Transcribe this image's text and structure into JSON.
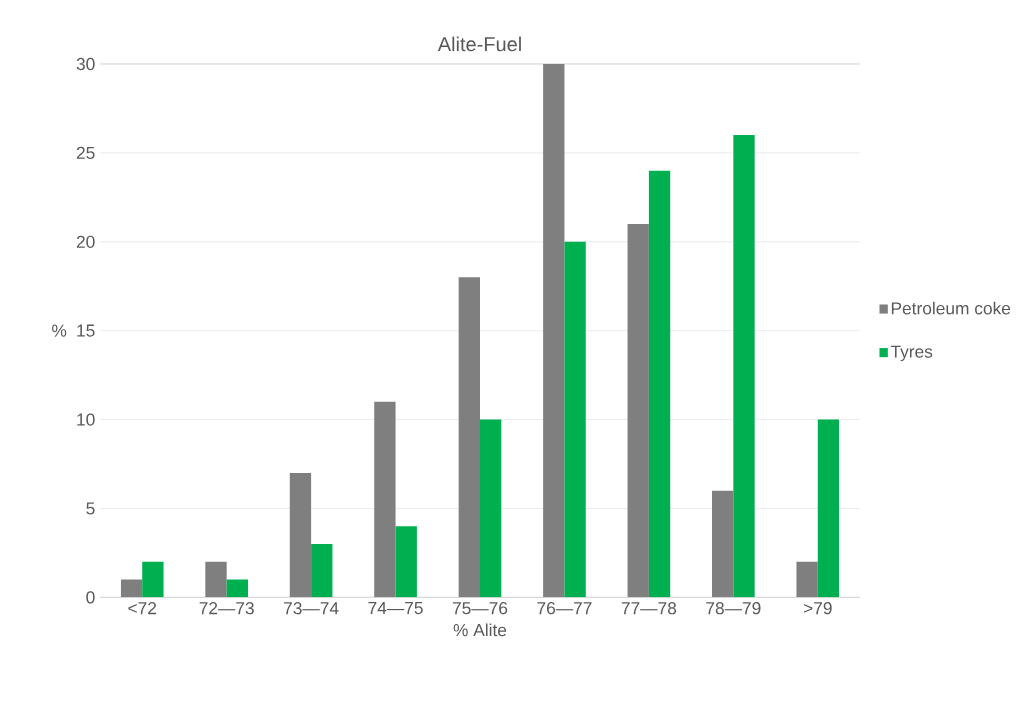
{
  "chart_data": {
    "type": "bar",
    "title": "Alite-Fuel",
    "xlabel": "% Alite",
    "ylabel": "%",
    "categories": [
      "<72",
      "72—73",
      "73—74",
      "74—75",
      "75—76",
      "76—77",
      "77—78",
      "78—79",
      ">79"
    ],
    "series": [
      {
        "name": "Petroleum coke",
        "color": "#7f7f7f",
        "values": [
          1,
          2,
          7,
          11,
          18,
          30,
          21,
          6,
          2
        ]
      },
      {
        "name": "Tyres",
        "color": "#00b050",
        "values": [
          2,
          1,
          3,
          4,
          10,
          20,
          24,
          26,
          10
        ]
      }
    ],
    "ylim": [
      0,
      30
    ],
    "yticks": [
      0,
      5,
      10,
      15,
      20,
      25,
      30
    ],
    "grid": "y",
    "legend": "right"
  }
}
